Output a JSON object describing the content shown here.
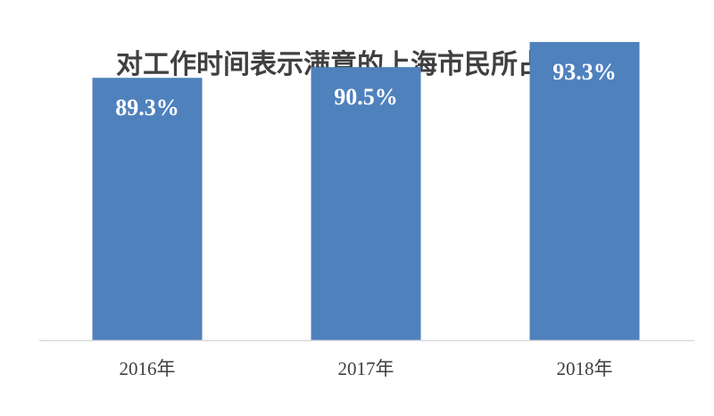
{
  "chart_data": {
    "type": "bar",
    "title": "对工作时间表示满意的上海市民所占比重",
    "categories": [
      "2016年",
      "2017年",
      "2018年"
    ],
    "values": [
      89.3,
      90.5,
      93.3
    ],
    "data_labels": [
      "89.3%",
      "90.5%",
      "93.3%"
    ],
    "unit": "%",
    "xlabel": "",
    "ylabel": "",
    "ylim": [
      60,
      96
    ],
    "grid": false,
    "legend": "none",
    "colors": {
      "bar": "#4f81bd",
      "axis": "#d9d9d9",
      "title": "#404040",
      "tick": "#404040",
      "label": "#ffffff"
    }
  }
}
